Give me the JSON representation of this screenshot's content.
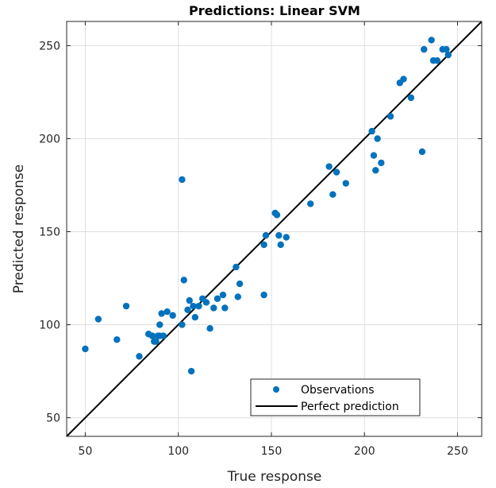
{
  "chart_data": {
    "type": "scatter",
    "title": "Predictions: Linear SVM",
    "xlabel": "True response",
    "ylabel": "Predicted response",
    "xlim": [
      40,
      263
    ],
    "ylim": [
      40,
      263
    ],
    "xticks": [
      50,
      100,
      150,
      200,
      250
    ],
    "yticks": [
      50,
      100,
      150,
      200,
      250
    ],
    "grid": true,
    "legend_position": "bottom-right",
    "colors": {
      "observations": "#0072BD",
      "perfect_prediction": "#000000"
    },
    "series": [
      {
        "name": "Observations",
        "type": "scatter",
        "points": [
          [
            50,
            87
          ],
          [
            57,
            103
          ],
          [
            67,
            92
          ],
          [
            72,
            110
          ],
          [
            79,
            83
          ],
          [
            84,
            95
          ],
          [
            86,
            94
          ],
          [
            87,
            91
          ],
          [
            88,
            91
          ],
          [
            89,
            94
          ],
          [
            90,
            94
          ],
          [
            90,
            100
          ],
          [
            91,
            106
          ],
          [
            92,
            94
          ],
          [
            94,
            107
          ],
          [
            97,
            105
          ],
          [
            102,
            100
          ],
          [
            102,
            178
          ],
          [
            103,
            124
          ],
          [
            105,
            108
          ],
          [
            106,
            113
          ],
          [
            107,
            75
          ],
          [
            108,
            110
          ],
          [
            109,
            104
          ],
          [
            111,
            110
          ],
          [
            113,
            114
          ],
          [
            115,
            112
          ],
          [
            117,
            98
          ],
          [
            119,
            109
          ],
          [
            121,
            114
          ],
          [
            124,
            116
          ],
          [
            125,
            109
          ],
          [
            131,
            131
          ],
          [
            132,
            115
          ],
          [
            133,
            122
          ],
          [
            146,
            143
          ],
          [
            146,
            116
          ],
          [
            147,
            148
          ],
          [
            152,
            160
          ],
          [
            153,
            159
          ],
          [
            154,
            148
          ],
          [
            155,
            143
          ],
          [
            158,
            147
          ],
          [
            171,
            165
          ],
          [
            181,
            185
          ],
          [
            183,
            170
          ],
          [
            185,
            182
          ],
          [
            190,
            176
          ],
          [
            204,
            204
          ],
          [
            205,
            191
          ],
          [
            206,
            183
          ],
          [
            207,
            200
          ],
          [
            209,
            187
          ],
          [
            214,
            212
          ],
          [
            219,
            230
          ],
          [
            221,
            232
          ],
          [
            225,
            222
          ],
          [
            231,
            193
          ],
          [
            232,
            248
          ],
          [
            236,
            253
          ],
          [
            237,
            242
          ],
          [
            239,
            242
          ],
          [
            242,
            248
          ],
          [
            244,
            248
          ],
          [
            245,
            245
          ]
        ]
      },
      {
        "name": "Perfect prediction",
        "type": "line",
        "points": [
          [
            40,
            40
          ],
          [
            263,
            263
          ]
        ]
      }
    ]
  }
}
